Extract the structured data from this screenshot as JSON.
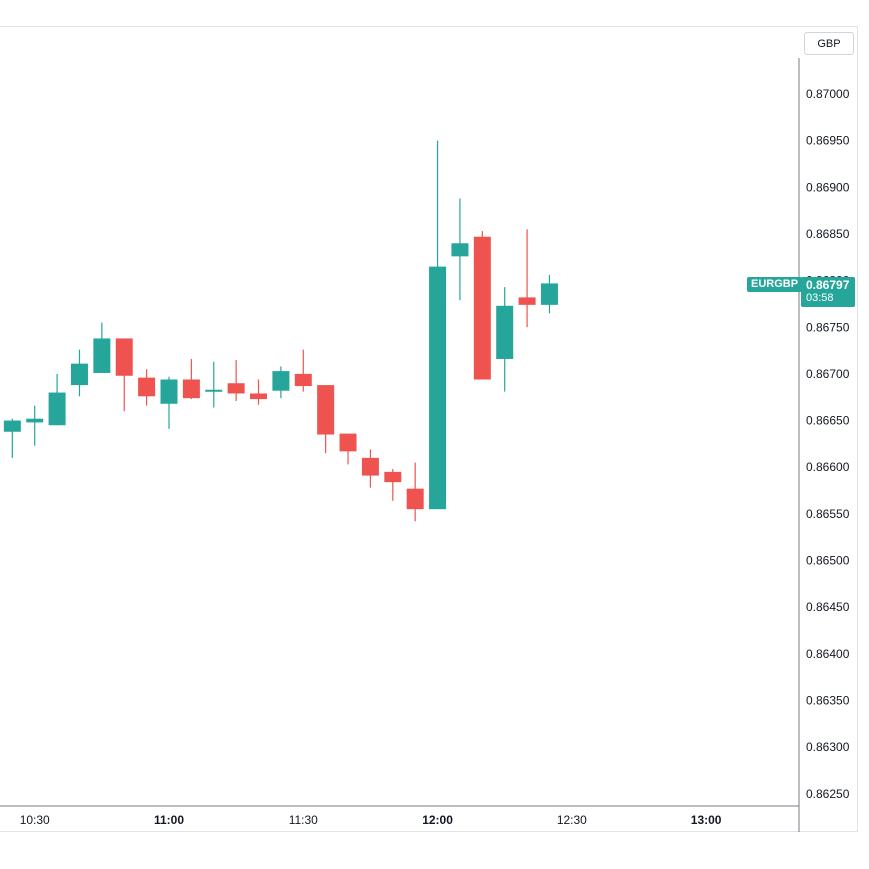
{
  "chart_data": {
    "type": "candlestick",
    "symbol": "EURGBP",
    "currency": "GBP",
    "last_price": "0.86797",
    "countdown": "03:58",
    "y_ticks": [
      "0.87000",
      "0.86950",
      "0.86900",
      "0.86850",
      "0.86800",
      "0.86750",
      "0.86700",
      "0.86650",
      "0.86600",
      "0.86550",
      "0.86500",
      "0.86450",
      "0.86400",
      "0.86350",
      "0.86300",
      "0.86250"
    ],
    "x_ticks": [
      "10:30",
      "11:00",
      "11:30",
      "12:00",
      "12:30",
      "13:00"
    ],
    "ylim": [
      0.86225,
      0.87065
    ],
    "candles": [
      {
        "t": "10:25",
        "o": 0.86638,
        "h": 0.86652,
        "l": 0.8661,
        "c": 0.8665
      },
      {
        "t": "10:30",
        "o": 0.86648,
        "h": 0.86666,
        "l": 0.86623,
        "c": 0.86652
      },
      {
        "t": "10:35",
        "o": 0.86645,
        "h": 0.867,
        "l": 0.86645,
        "c": 0.8668
      },
      {
        "t": "10:40",
        "o": 0.86688,
        "h": 0.86726,
        "l": 0.86676,
        "c": 0.86711
      },
      {
        "t": "10:45",
        "o": 0.86701,
        "h": 0.86755,
        "l": 0.86701,
        "c": 0.86738
      },
      {
        "t": "10:50",
        "o": 0.86738,
        "h": 0.86738,
        "l": 0.8666,
        "c": 0.86698
      },
      {
        "t": "10:55",
        "o": 0.86696,
        "h": 0.86705,
        "l": 0.86666,
        "c": 0.86676
      },
      {
        "t": "11:00",
        "o": 0.86668,
        "h": 0.86697,
        "l": 0.86641,
        "c": 0.86694
      },
      {
        "t": "11:05",
        "o": 0.86694,
        "h": 0.86716,
        "l": 0.86673,
        "c": 0.86674
      },
      {
        "t": "11:10",
        "o": 0.86682,
        "h": 0.86713,
        "l": 0.86664,
        "c": 0.86683
      },
      {
        "t": "11:15",
        "o": 0.8669,
        "h": 0.86715,
        "l": 0.86671,
        "c": 0.86679
      },
      {
        "t": "11:20",
        "o": 0.86679,
        "h": 0.86694,
        "l": 0.86667,
        "c": 0.86673
      },
      {
        "t": "11:25",
        "o": 0.86682,
        "h": 0.86708,
        "l": 0.86674,
        "c": 0.86703
      },
      {
        "t": "11:30",
        "o": 0.867,
        "h": 0.86726,
        "l": 0.86681,
        "c": 0.86687
      },
      {
        "t": "11:35",
        "o": 0.86688,
        "h": 0.86688,
        "l": 0.86615,
        "c": 0.86635
      },
      {
        "t": "11:40",
        "o": 0.86636,
        "h": 0.86636,
        "l": 0.86603,
        "c": 0.86617
      },
      {
        "t": "11:45",
        "o": 0.8661,
        "h": 0.86619,
        "l": 0.86578,
        "c": 0.86591
      },
      {
        "t": "11:50",
        "o": 0.86595,
        "h": 0.86598,
        "l": 0.86564,
        "c": 0.86584
      },
      {
        "t": "11:55",
        "o": 0.86577,
        "h": 0.86605,
        "l": 0.86542,
        "c": 0.86555
      },
      {
        "t": "12:00",
        "o": 0.86555,
        "h": 0.8695,
        "l": 0.86555,
        "c": 0.86815
      },
      {
        "t": "12:05",
        "o": 0.86826,
        "h": 0.86888,
        "l": 0.86779,
        "c": 0.8684
      },
      {
        "t": "12:10",
        "o": 0.86847,
        "h": 0.86853,
        "l": 0.86694,
        "c": 0.86694
      },
      {
        "t": "12:15",
        "o": 0.86716,
        "h": 0.86793,
        "l": 0.86681,
        "c": 0.86773
      },
      {
        "t": "12:20",
        "o": 0.86782,
        "h": 0.86855,
        "l": 0.8675,
        "c": 0.86774
      },
      {
        "t": "12:25",
        "o": 0.86774,
        "h": 0.86806,
        "l": 0.86765,
        "c": 0.86797
      }
    ],
    "colors": {
      "up": "#26a69a",
      "down": "#ef5350",
      "axis_text": "#131722",
      "axis_line": "#787b86"
    }
  }
}
